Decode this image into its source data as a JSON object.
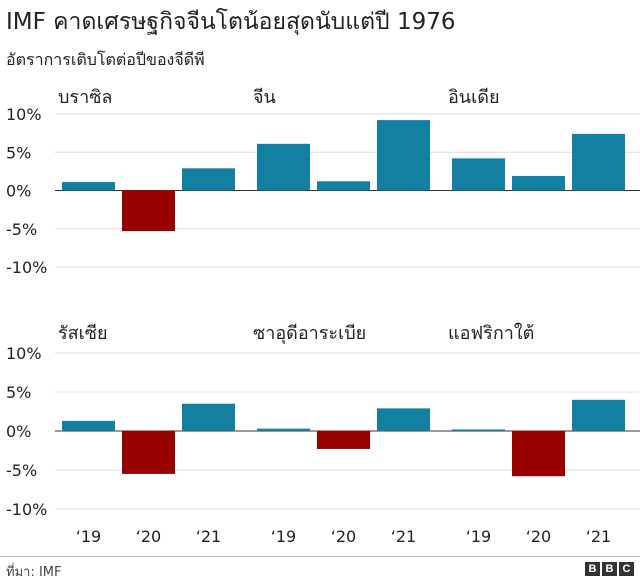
{
  "title": "IMF คาดเศรษฐกิจจีนโตน้อยสุดนับแต่ปี 1976",
  "subtitle": "อัตราการเติบโตต่อปีของจีดีพี",
  "source": "ที่มา: IMF",
  "logo": "BBC",
  "colors": {
    "positive": "#1380A1",
    "negative": "#990000",
    "grid": "#dddddd",
    "zero": "#333333"
  },
  "chart_data": {
    "type": "bar",
    "layout": "small-multiples 3x2",
    "categories": [
      "‘19",
      "‘20",
      "‘21"
    ],
    "yticks": [
      "10%",
      "5%",
      "0%",
      "-5%",
      "-10%"
    ],
    "ylim": [
      -10,
      10
    ],
    "grid": true,
    "panels": [
      {
        "name": "บราซิล",
        "values": [
          1.1,
          -5.3,
          2.9
        ]
      },
      {
        "name": "จีน",
        "values": [
          6.1,
          1.2,
          9.2
        ]
      },
      {
        "name": "อินเดีย",
        "values": [
          4.2,
          1.9,
          7.4
        ]
      },
      {
        "name": "รัสเซีย",
        "values": [
          1.3,
          -5.5,
          3.5
        ]
      },
      {
        "name": "ซาอุดีอาระเบีย",
        "values": [
          0.3,
          -2.3,
          2.9
        ]
      },
      {
        "name": "แอฟริกาใต้",
        "values": [
          0.2,
          -5.8,
          4.0
        ]
      }
    ]
  }
}
